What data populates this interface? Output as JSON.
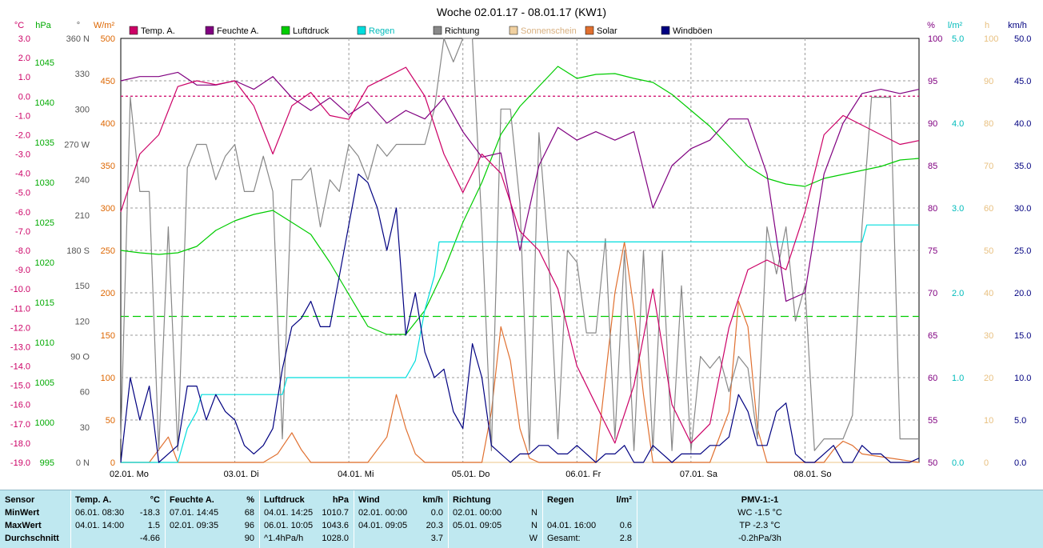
{
  "title": "Woche 02.01.17 - 08.01.17 (KW1)",
  "chart_data": {
    "type": "line",
    "title": "Woche 02.01.17 - 08.01.17 (KW1)",
    "x_range_hours": [
      0,
      168
    ],
    "x_ticks": [
      "02.01. Mo",
      "03.01. Di",
      "04.01. Mi",
      "05.01. Do",
      "06.01. Fr",
      "07.01. Sa",
      "08.01. So"
    ],
    "left_axes": [
      {
        "unit": "°C",
        "range": [
          -19,
          3
        ],
        "color": "#cc0066",
        "ticks": [
          "3.0",
          "2.0",
          "1.0",
          "0.0",
          "-1.0",
          "-2.0",
          "-3.0",
          "-4.0",
          "-5.0",
          "-6.0",
          "-7.0",
          "-8.0",
          "-9.0",
          "-10.0",
          "-11.0",
          "-12.0",
          "-13.0",
          "-14.0",
          "-15.0",
          "-16.0",
          "-17.0",
          "-18.0",
          "-19.0"
        ]
      },
      {
        "unit": "hPa",
        "range": [
          995,
          1048
        ],
        "color": "#00aa00",
        "ticks": [
          "1045",
          "1040",
          "1035",
          "1030",
          "1025",
          "1020",
          "1015",
          "1010",
          "1005",
          "1000",
          "995"
        ]
      },
      {
        "unit": "°",
        "range": [
          0,
          360
        ],
        "color": "#555555",
        "ticks": [
          "360 N",
          "330",
          "300",
          "270 W",
          "240",
          "210",
          "180 S",
          "150",
          "120",
          "90 O",
          "60",
          "30",
          "0 N"
        ]
      },
      {
        "unit": "W/m²",
        "range": [
          0,
          500
        ],
        "color": "#dd6600",
        "ticks": [
          "500",
          "450",
          "400",
          "350",
          "300",
          "250",
          "200",
          "150",
          "100",
          "50",
          "0"
        ]
      }
    ],
    "right_axes": [
      {
        "unit": "%",
        "range": [
          50,
          100
        ],
        "color": "#800080",
        "ticks": [
          "100",
          "95",
          "90",
          "85",
          "80",
          "75",
          "70",
          "65",
          "60",
          "55",
          "50"
        ]
      },
      {
        "unit": "l/m²",
        "range": [
          0,
          5
        ],
        "color": "#00bbbb",
        "ticks": [
          "5.0",
          "4.0",
          "3.0",
          "2.0",
          "1.0",
          "0.0"
        ]
      },
      {
        "unit": "h",
        "range": [
          0,
          100
        ],
        "color": "#e8c080",
        "ticks": [
          "100",
          "90",
          "80",
          "70",
          "60",
          "50",
          "40",
          "30",
          "20",
          "10",
          "0"
        ]
      },
      {
        "unit": "km/h",
        "range": [
          0,
          50
        ],
        "color": "#000080",
        "ticks": [
          "50.0",
          "45.0",
          "40.0",
          "35.0",
          "30.0",
          "25.0",
          "20.0",
          "15.0",
          "10.0",
          "5.0",
          "0.0"
        ]
      }
    ],
    "legend": [
      {
        "name": "Temp. A.",
        "color": "#cc0066"
      },
      {
        "name": "Feuchte A.",
        "color": "#800080"
      },
      {
        "name": "Luftdruck",
        "color": "#00cc00"
      },
      {
        "name": "Regen",
        "color": "#00dddd"
      },
      {
        "name": "Richtung",
        "color": "#888888"
      },
      {
        "name": "Sonnenschein",
        "color": "#f0d0a0"
      },
      {
        "name": "Solar",
        "color": "#e07030"
      },
      {
        "name": "Windböen",
        "color": "#000080"
      }
    ],
    "series": [
      {
        "name": "Temp. A.",
        "color": "#cc0066",
        "axis": "°C",
        "x": [
          0,
          4,
          8,
          12,
          16,
          20,
          24,
          28,
          32,
          36,
          40,
          44,
          48,
          52,
          56,
          60,
          64,
          68,
          72,
          76,
          80,
          84,
          88,
          92,
          96,
          100,
          104,
          108,
          112,
          116,
          120,
          124,
          128,
          132,
          136,
          140,
          144,
          148,
          152,
          156,
          160,
          164,
          168
        ],
        "y": [
          -6,
          -3,
          -2,
          0.5,
          0.8,
          0.6,
          0.8,
          -0.5,
          -3,
          -0.5,
          0.2,
          -1,
          -1.2,
          0.5,
          1,
          1.5,
          0,
          -3,
          -5,
          -3,
          -4,
          -7,
          -8,
          -10,
          -14,
          -16,
          -18,
          -15,
          -10,
          -16,
          -18,
          -17,
          -12,
          -9,
          -8.5,
          -9,
          -6,
          -2,
          -1,
          -1.5,
          -2,
          -2.5,
          -2.3
        ]
      },
      {
        "name": "Feuchte A.",
        "color": "#800080",
        "axis": "%",
        "x": [
          0,
          4,
          8,
          12,
          16,
          20,
          24,
          28,
          32,
          36,
          40,
          44,
          48,
          52,
          56,
          60,
          64,
          68,
          72,
          76,
          80,
          84,
          88,
          92,
          96,
          100,
          104,
          108,
          112,
          116,
          120,
          124,
          128,
          132,
          136,
          140,
          144,
          148,
          152,
          156,
          160,
          164,
          168
        ],
        "y": [
          95,
          95.5,
          95.5,
          96,
          94.5,
          94.5,
          95,
          94,
          95.5,
          93,
          91.5,
          93,
          91,
          92.5,
          90,
          91.5,
          90.5,
          93,
          89,
          86,
          86.5,
          75,
          85,
          89.5,
          88,
          89,
          88,
          89,
          80,
          85,
          87,
          88,
          90.5,
          90.5,
          84,
          69,
          70,
          84,
          90,
          93.5,
          94,
          93.5,
          94
        ]
      },
      {
        "name": "Luftdruck",
        "color": "#00cc00",
        "axis": "hPa",
        "x": [
          0,
          4,
          8,
          12,
          16,
          20,
          24,
          28,
          32,
          36,
          40,
          44,
          48,
          52,
          56,
          60,
          64,
          68,
          72,
          76,
          80,
          84,
          88,
          92,
          96,
          100,
          104,
          108,
          112,
          116,
          120,
          124,
          128,
          132,
          136,
          140,
          144,
          148,
          152,
          156,
          160,
          164,
          168
        ],
        "y": [
          1021.5,
          1021.2,
          1021,
          1021.2,
          1022,
          1024,
          1025.2,
          1026,
          1026.5,
          1025,
          1023.5,
          1020,
          1016,
          1012,
          1011,
          1011,
          1014,
          1019,
          1025,
          1030,
          1036,
          1039.5,
          1042,
          1044.5,
          1043,
          1043.5,
          1043.6,
          1043,
          1042.5,
          1041,
          1039,
          1037,
          1034.5,
          1032,
          1030.5,
          1029.8,
          1029.5,
          1030.5,
          1031,
          1031.5,
          1032,
          1032.8,
          1033
        ]
      },
      {
        "name": "Regen",
        "color": "#00dddd",
        "axis": "l/m²",
        "x": [
          0,
          12,
          14,
          16,
          17,
          20,
          33,
          34,
          35,
          36,
          60,
          62,
          64,
          66,
          67,
          68,
          126,
          156,
          157,
          158,
          168
        ],
        "y": [
          0,
          0,
          0.4,
          0.6,
          0.8,
          0.8,
          0.8,
          0.8,
          1.0,
          1.0,
          1.0,
          1.2,
          1.8,
          2.2,
          2.6,
          2.6,
          2.6,
          2.6,
          2.8,
          2.8,
          2.8
        ]
      },
      {
        "name": "Richtung",
        "color": "#888888",
        "axis": "°",
        "x": [
          0,
          2,
          4,
          6,
          8,
          10,
          12,
          14,
          16,
          18,
          20,
          22,
          24,
          26,
          28,
          30,
          32,
          34,
          36,
          38,
          40,
          42,
          44,
          46,
          48,
          50,
          52,
          54,
          56,
          58,
          60,
          62,
          64,
          66,
          68,
          70,
          72,
          74,
          76,
          78,
          80,
          82,
          84,
          86,
          88,
          90,
          92,
          94,
          96,
          98,
          100,
          102,
          104,
          106,
          108,
          110,
          112,
          114,
          116,
          118,
          120,
          122,
          124,
          126,
          128,
          130,
          132,
          134,
          136,
          138,
          140,
          142,
          144,
          146,
          148,
          150,
          152,
          154,
          156,
          158,
          160,
          162,
          164,
          166,
          168
        ],
        "y": [
          20,
          310,
          230,
          230,
          10,
          200,
          10,
          250,
          270,
          270,
          240,
          260,
          270,
          230,
          230,
          260,
          230,
          20,
          240,
          240,
          250,
          200,
          240,
          230,
          270,
          260,
          240,
          270,
          260,
          270,
          270,
          270,
          270,
          300,
          360,
          340,
          360,
          360,
          200,
          10,
          300,
          300,
          220,
          10,
          280,
          180,
          20,
          180,
          170,
          110,
          110,
          190,
          20,
          180,
          10,
          180,
          10,
          180,
          10,
          150,
          10,
          90,
          80,
          90,
          60,
          90,
          80,
          20,
          200,
          160,
          200,
          120,
          150,
          10,
          20,
          20,
          20,
          40,
          200,
          310,
          310,
          310,
          20,
          20,
          20
        ]
      },
      {
        "name": "Sonnenschein",
        "color": "#f0d0a0",
        "axis": "h",
        "x": [
          0,
          168
        ],
        "y": [
          0,
          0
        ]
      },
      {
        "name": "Solar",
        "color": "#e07030",
        "axis": "W/m²",
        "x": [
          0,
          6,
          8,
          10,
          12,
          30,
          33,
          36,
          38,
          40,
          52,
          56,
          58,
          60,
          62,
          64,
          76,
          78,
          80,
          82,
          84,
          86,
          88,
          100,
          104,
          106,
          108,
          110,
          112,
          124,
          128,
          130,
          132,
          134,
          136,
          148,
          150,
          152,
          154,
          156,
          168
        ],
        "y": [
          0,
          0,
          15,
          30,
          0,
          0,
          10,
          35,
          15,
          0,
          0,
          30,
          80,
          40,
          10,
          0,
          0,
          60,
          160,
          120,
          40,
          5,
          0,
          0,
          200,
          260,
          180,
          80,
          0,
          0,
          60,
          190,
          160,
          40,
          0,
          0,
          15,
          25,
          20,
          10,
          0
        ]
      },
      {
        "name": "Windböen",
        "color": "#000080",
        "axis": "km/h",
        "x": [
          0,
          2,
          4,
          6,
          8,
          10,
          12,
          14,
          16,
          18,
          20,
          22,
          24,
          26,
          28,
          30,
          32,
          34,
          36,
          38,
          40,
          42,
          44,
          46,
          48,
          50,
          52,
          54,
          56,
          58,
          60,
          62,
          64,
          66,
          68,
          70,
          72,
          74,
          76,
          78,
          80,
          82,
          84,
          86,
          88,
          90,
          92,
          94,
          96,
          98,
          100,
          102,
          104,
          106,
          108,
          110,
          112,
          114,
          116,
          118,
          120,
          122,
          124,
          126,
          128,
          130,
          132,
          134,
          136,
          138,
          140,
          142,
          144,
          146,
          148,
          150,
          152,
          154,
          156,
          158,
          160,
          162,
          164,
          166,
          168
        ],
        "y": [
          0,
          10,
          5,
          9,
          0,
          1,
          2,
          9,
          9,
          5,
          8,
          6,
          5,
          2,
          1,
          2,
          4,
          11,
          16,
          17,
          19,
          16,
          16,
          22,
          28,
          34,
          33,
          30,
          25,
          30,
          15,
          20,
          13,
          10,
          11,
          6,
          4,
          14,
          10,
          2,
          1,
          0,
          1,
          1,
          2,
          2,
          1,
          1,
          2,
          1,
          0,
          1,
          1,
          2,
          0,
          0,
          2,
          1,
          0,
          1,
          1,
          1,
          2,
          2,
          3,
          8,
          6,
          2,
          2,
          6,
          7,
          1,
          0,
          0,
          1,
          2,
          0,
          0,
          2,
          1,
          1,
          0,
          0,
          0,
          0.5
        ]
      }
    ],
    "reference_lines": [
      {
        "axis": "°C",
        "value": 0,
        "color": "#cc0066",
        "style": "dashed"
      },
      {
        "axis": "hPa",
        "value": 1013.25,
        "color": "#00cc00",
        "style": "dashed"
      }
    ],
    "grid": true
  },
  "stats": {
    "labels": {
      "sensor": "Sensor",
      "min": "MinWert",
      "max": "MaxWert",
      "avg": "Durchschnitt"
    },
    "temp": {
      "header": "Temp. A.",
      "unit": "°C",
      "min_time": "06.01.  08:30",
      "min_val": "-18.3",
      "max_time": "04.01.  14:00",
      "max_val": "1.5",
      "avg_val": "-4.66"
    },
    "hum": {
      "header": "Feuchte A.",
      "unit": "%",
      "min_time": "07.01.  14:45",
      "min_val": "68",
      "max_time": "02.01.  09:35",
      "max_val": "96",
      "avg_val": "90"
    },
    "press": {
      "header": "Luftdruck",
      "unit": "hPa",
      "min_time": "04.01.  14:25",
      "min_val": "1010.7",
      "max_time": "06.01.  10:05",
      "max_val": "1043.6",
      "avg_time": "^1.4hPa/h",
      "avg_val": "1028.0"
    },
    "wind": {
      "header": "Wind",
      "unit": "km/h",
      "min_time": "02.01.  00:00",
      "min_val": "0.0",
      "max_time": "04.01.  09:05",
      "max_val": "20.3",
      "avg_val": "3.7"
    },
    "dir": {
      "header": "Richtung",
      "min_time": "02.01.  00:00",
      "min_val": "N",
      "max_time": "05.01.  09:05",
      "max_val": "N",
      "avg_val": "W"
    },
    "rain": {
      "header": "Regen",
      "unit": "l/m²",
      "max_time": "04.01.  16:00",
      "max_val": "0.6",
      "avg_time": "Gesamt:",
      "avg_val": "2.8"
    },
    "pmv": {
      "header": "PMV-1:-1",
      "wc": "WC -1.5 °C",
      "tp": "TP -2.3 °C",
      "trend": "-0.2hPa/3h"
    }
  }
}
